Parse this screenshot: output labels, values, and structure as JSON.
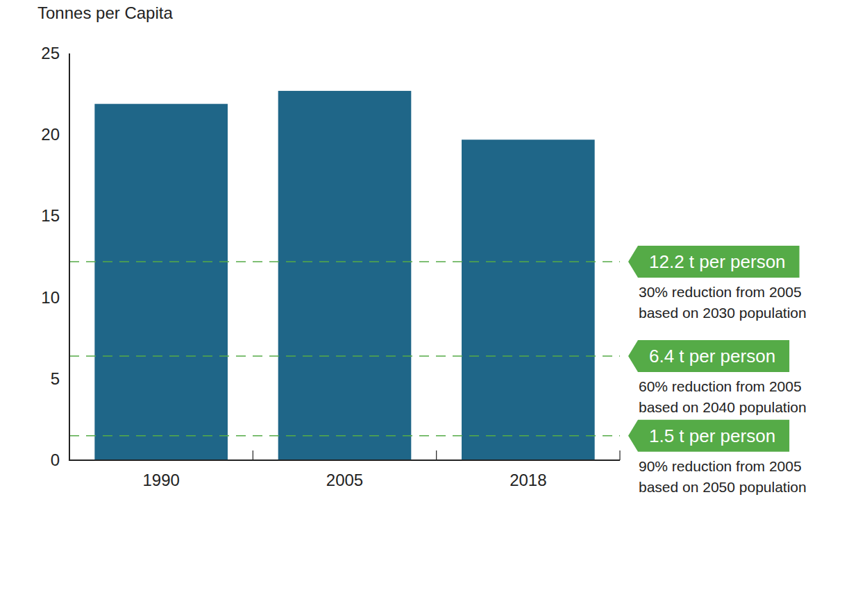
{
  "chart_data": {
    "type": "bar",
    "y_label": "Tonnes per Capita",
    "categories": [
      "1990",
      "2005",
      "2018"
    ],
    "values": [
      21.9,
      22.7,
      19.7
    ],
    "color": "#1f6688",
    "ylim": [
      0,
      25
    ],
    "yticks": [
      0,
      5,
      10,
      15,
      20,
      25
    ],
    "grid": false,
    "reference_lines": [
      {
        "value": 12.2,
        "label": "12.2 t per person",
        "note": [
          "30% reduction from 2005",
          "based on 2030 population"
        ]
      },
      {
        "value": 6.4,
        "label": "6.4 t per person",
        "note": [
          "60% reduction from 2005",
          "based on 2040 population"
        ]
      },
      {
        "value": 1.5,
        "label": "1.5 t per person",
        "note": [
          "90% reduction from 2005",
          "based on 2050 population"
        ]
      }
    ]
  }
}
